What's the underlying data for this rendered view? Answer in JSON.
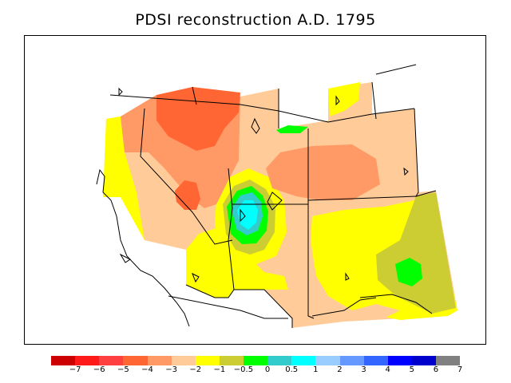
{
  "title": "PDSI reconstruction A.D. 1795",
  "colorbar": {
    "colors": [
      "#cc0000",
      "#ff1a1a",
      "#ff4040",
      "#ff6633",
      "#ff9966",
      "#ffcc99",
      "#ffff00",
      "#cccc33",
      "#00ff00",
      "#33cccc",
      "#00ffff",
      "#99ccff",
      "#6699ff",
      "#3366ff",
      "#0000ff",
      "#0000cc",
      "#808080"
    ],
    "labels": [
      "−7",
      "−6",
      "−5",
      "−4",
      "−3",
      "−2",
      "−1",
      "−0.5",
      "0",
      "0.5",
      "1",
      "2",
      "3",
      "4",
      "5",
      "6",
      "7"
    ]
  },
  "map_colors": {
    "very_wet_core": "#00ffff",
    "wet": "#33cccc",
    "moist": "#00ff00",
    "near_normal": "#cccc33",
    "mild_dry": "#ffff00",
    "dry": "#ffcc99",
    "moderate_dry": "#ff9966",
    "severe_dry": "#ff6633",
    "no_data": "#ffffff",
    "lines": "#000000"
  }
}
